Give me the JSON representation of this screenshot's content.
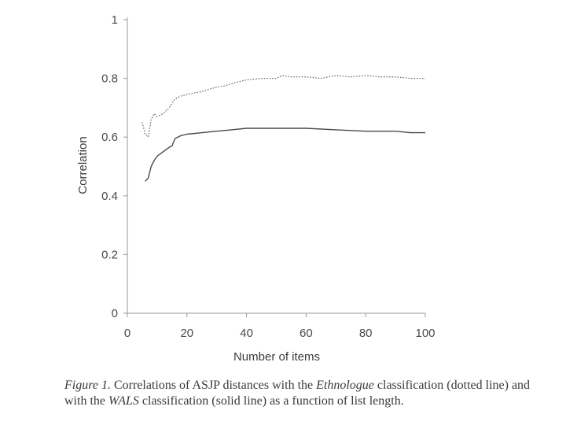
{
  "chart_data": {
    "type": "line",
    "xlabel": "Number of items",
    "ylabel": "Correlation",
    "xlim": [
      0,
      100
    ],
    "ylim": [
      0,
      1
    ],
    "x_ticks": [
      "0",
      "20",
      "40",
      "60",
      "80",
      "100"
    ],
    "y_ticks": [
      "0",
      "0.2",
      "0.4",
      "0.6",
      "0.8",
      "1"
    ],
    "grid": false,
    "series": [
      {
        "style": "dotted",
        "color": "#6a6a6a",
        "x": [
          5,
          6,
          7,
          8,
          9,
          10,
          12,
          14,
          16,
          18,
          20,
          22,
          25,
          28,
          30,
          33,
          36,
          40,
          45,
          50,
          52,
          55,
          60,
          65,
          70,
          75,
          80,
          85,
          90,
          95,
          100
        ],
        "y": [
          0.65,
          0.61,
          0.6,
          0.66,
          0.68,
          0.67,
          0.68,
          0.7,
          0.73,
          0.74,
          0.745,
          0.75,
          0.755,
          0.765,
          0.77,
          0.775,
          0.785,
          0.795,
          0.8,
          0.8,
          0.81,
          0.805,
          0.805,
          0.8,
          0.81,
          0.805,
          0.81,
          0.805,
          0.805,
          0.8,
          0.8
        ]
      },
      {
        "style": "solid",
        "color": "#4a4a4a",
        "x": [
          6,
          7,
          8,
          9,
          10,
          12,
          14,
          15,
          16,
          18,
          20,
          25,
          30,
          35,
          40,
          45,
          50,
          55,
          60,
          70,
          80,
          90,
          95,
          100
        ],
        "y": [
          0.45,
          0.46,
          0.5,
          0.52,
          0.535,
          0.55,
          0.565,
          0.57,
          0.595,
          0.605,
          0.61,
          0.615,
          0.62,
          0.625,
          0.63,
          0.63,
          0.63,
          0.63,
          0.63,
          0.625,
          0.62,
          0.62,
          0.615,
          0.615
        ]
      }
    ]
  },
  "caption": {
    "figure_label": "Figure 1.",
    "part1": " Correlations of ASJP distances with the ",
    "italic1": "Ethnologue",
    "part2": " classification (dotted line) and with the ",
    "italic2": "WALS",
    "part3": " classification (solid line) as a function of list length."
  }
}
